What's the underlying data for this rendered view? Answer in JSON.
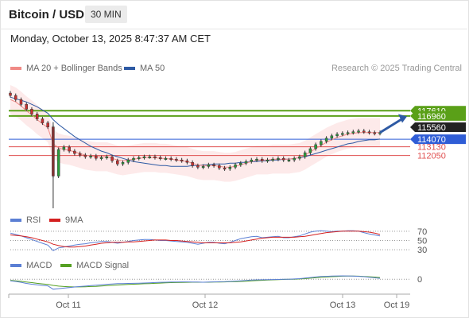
{
  "header": {
    "title": "Bitcoin / USD",
    "timeframe": "30 MIN"
  },
  "datetime": "Monday, October 13, 2025 8:47:37 AM CET",
  "credit": "Research © 2025 Trading Central",
  "legend_main": [
    {
      "label": "MA 20 + Bollinger Bands",
      "color": "#f08a86"
    },
    {
      "label": "MA 50",
      "color": "#2e5aa4"
    }
  ],
  "legend_rsi": [
    {
      "label": "RSI",
      "color": "#5b7fd4"
    },
    {
      "label": "9MA",
      "color": "#d42020"
    }
  ],
  "legend_macd": [
    {
      "label": "MACD",
      "color": "#5b7fd4"
    },
    {
      "label": "MACD Signal",
      "color": "#55a022"
    }
  ],
  "chart_data": {
    "type": "candlestick",
    "ylim": [
      105500,
      120500
    ],
    "x_ticks": [
      "Oct 11",
      "Oct 12",
      "Oct 13",
      "Oct 19"
    ],
    "levels": [
      {
        "value": 117610,
        "color": "#5aa018",
        "label_bg": "#5aa018"
      },
      {
        "value": 116960,
        "color": "#5aa018",
        "label_bg": "#5aa018",
        "hidden_label": true
      },
      {
        "value": 115560,
        "color": "#ffffff",
        "label_bg": "#222222",
        "hidden_label": true
      },
      {
        "value": 114070,
        "color": "#2f5dd6",
        "label_bg": "#2f5dd6"
      },
      {
        "value": 113130,
        "color": "#e05050",
        "label_bg": null,
        "hidden_label": true
      },
      {
        "value": 112050,
        "color": "#e05050",
        "label_bg": null
      }
    ],
    "price_series": {
      "name": "BTC/USD 30m",
      "x": [
        0,
        4,
        8,
        12,
        16,
        20,
        24,
        28,
        32,
        36,
        40,
        44,
        48,
        52,
        56,
        60,
        64,
        68,
        72,
        76,
        80,
        84,
        88,
        92,
        96,
        100,
        104,
        108,
        112,
        116,
        120,
        124,
        128,
        132,
        136,
        140,
        144,
        148,
        152,
        156,
        160,
        164,
        168,
        172,
        176,
        180,
        184,
        188,
        192,
        196,
        200,
        204,
        208,
        212,
        216,
        220,
        224,
        228,
        232,
        236,
        240,
        244,
        248,
        252,
        256,
        260,
        264,
        268,
        272,
        276
      ],
      "close": [
        119500,
        119000,
        118400,
        117800,
        117200,
        116600,
        116100,
        115600,
        109500,
        112800,
        113100,
        112600,
        112300,
        112100,
        111900,
        112000,
        111700,
        111800,
        111900,
        111400,
        111000,
        111200,
        111500,
        111700,
        111800,
        111900,
        111900,
        111800,
        111700,
        111700,
        111600,
        111500,
        111400,
        111200,
        110800,
        110600,
        110700,
        110900,
        110800,
        110500,
        110400,
        110600,
        110900,
        111100,
        111300,
        111500,
        111600,
        111400,
        111500,
        111600,
        111700,
        111500,
        111500,
        111700,
        111900,
        112400,
        112900,
        113400,
        113800,
        114200,
        114500,
        114700,
        114800,
        114900,
        115000,
        115100,
        115000,
        114900,
        114800,
        114900
      ],
      "low_spike": {
        "x": 32,
        "value": 103000
      },
      "high_spike": {
        "x": 32,
        "value": 116200
      }
    },
    "ma20": [
      119000,
      118700,
      118200,
      117600,
      117100,
      116500,
      116000,
      115500,
      113500,
      113000,
      112800,
      112700,
      112500,
      112300,
      112100,
      112000,
      111900,
      111900,
      111900,
      111700,
      111500,
      111400,
      111500,
      111600,
      111700,
      111800,
      111800,
      111800,
      111700,
      111700,
      111600,
      111500,
      111400,
      111300,
      111100,
      110900,
      110800,
      110800,
      110800,
      110700,
      110600,
      110600,
      110700,
      110900,
      111100,
      111300,
      111500,
      111500,
      111500,
      111600,
      111600,
      111600,
      111600,
      111700,
      111800,
      112100,
      112500,
      112900,
      113300,
      113700,
      114000,
      114300,
      114500,
      114700,
      114800,
      114900,
      114900,
      114900,
      114900,
      114900
    ],
    "ma50": [
      119300,
      119100,
      118900,
      118700,
      118400,
      118100,
      117700,
      117300,
      116500,
      115900,
      115400,
      114900,
      114400,
      114000,
      113600,
      113200,
      112900,
      112600,
      112400,
      112100,
      111900,
      111700,
      111500,
      111300,
      111200,
      111100,
      111000,
      110900,
      110800,
      110800,
      110700,
      110700,
      110700,
      110700,
      110800,
      110800,
      110900,
      110900,
      111000,
      111000,
      111000,
      111100,
      111100,
      111200,
      111200,
      111300,
      111300,
      111400,
      111400,
      111500,
      111500,
      111600,
      111600,
      111700,
      111800,
      111900,
      112100,
      112300,
      112500,
      112700,
      112900,
      113100,
      113300,
      113500,
      113600,
      113800,
      113900,
      114000,
      114000,
      114100
    ],
    "bb_width": 1800,
    "projection": {
      "from_x": 276,
      "from_value": 114900,
      "to_value": 116900
    },
    "rsi": {
      "levels": [
        70,
        50,
        30
      ],
      "ylim": [
        20,
        80
      ],
      "rsi": [
        66,
        63,
        60,
        56,
        52,
        48,
        44,
        40,
        28,
        34,
        36,
        38,
        40,
        42,
        43,
        45,
        46,
        48,
        48,
        46,
        44,
        46,
        48,
        50,
        51,
        52,
        52,
        51,
        50,
        50,
        49,
        48,
        47,
        46,
        44,
        42,
        44,
        46,
        46,
        44,
        43,
        46,
        50,
        54,
        56,
        58,
        59,
        56,
        57,
        58,
        59,
        56,
        56,
        58,
        60,
        64,
        68,
        70,
        71,
        70,
        69,
        70,
        70,
        71,
        71,
        70,
        67,
        64,
        62,
        60
      ],
      "ma9": [
        62,
        61,
        60,
        58,
        56,
        53,
        50,
        47,
        42,
        39,
        37,
        36,
        36,
        37,
        38,
        40,
        42,
        44,
        45,
        46,
        46,
        46,
        47,
        47,
        48,
        49,
        50,
        51,
        51,
        51,
        50,
        50,
        49,
        48,
        47,
        46,
        45,
        45,
        45,
        45,
        45,
        45,
        46,
        47,
        49,
        51,
        53,
        55,
        56,
        57,
        57,
        57,
        57,
        57,
        58,
        59,
        61,
        63,
        65,
        67,
        68,
        69,
        70,
        70,
        70,
        70,
        69,
        68,
        66,
        63
      ]
    },
    "macd": {
      "zero": 0,
      "ylim": [
        -1200,
        800
      ],
      "macd": [
        -150,
        -200,
        -280,
        -380,
        -450,
        -500,
        -560,
        -600,
        -900,
        -850,
        -800,
        -750,
        -700,
        -660,
        -620,
        -580,
        -540,
        -500,
        -460,
        -430,
        -400,
        -390,
        -380,
        -370,
        -360,
        -340,
        -320,
        -300,
        -280,
        -270,
        -260,
        -250,
        -240,
        -240,
        -250,
        -260,
        -270,
        -260,
        -240,
        -230,
        -220,
        -200,
        -170,
        -140,
        -110,
        -80,
        -60,
        -50,
        -40,
        -30,
        -20,
        -10,
        0,
        20,
        50,
        100,
        150,
        200,
        240,
        260,
        280,
        290,
        300,
        290,
        280,
        260,
        230,
        180,
        130,
        80
      ],
      "signal": [
        -100,
        -140,
        -190,
        -250,
        -310,
        -370,
        -420,
        -470,
        -560,
        -620,
        -660,
        -680,
        -690,
        -690,
        -680,
        -660,
        -640,
        -610,
        -580,
        -550,
        -520,
        -490,
        -470,
        -450,
        -430,
        -410,
        -390,
        -370,
        -350,
        -330,
        -310,
        -300,
        -290,
        -280,
        -270,
        -270,
        -270,
        -270,
        -260,
        -250,
        -240,
        -230,
        -220,
        -200,
        -180,
        -150,
        -120,
        -100,
        -80,
        -60,
        -40,
        -20,
        -10,
        0,
        20,
        50,
        90,
        130,
        170,
        200,
        230,
        250,
        270,
        280,
        280,
        270,
        250,
        220,
        190,
        150
      ]
    }
  }
}
